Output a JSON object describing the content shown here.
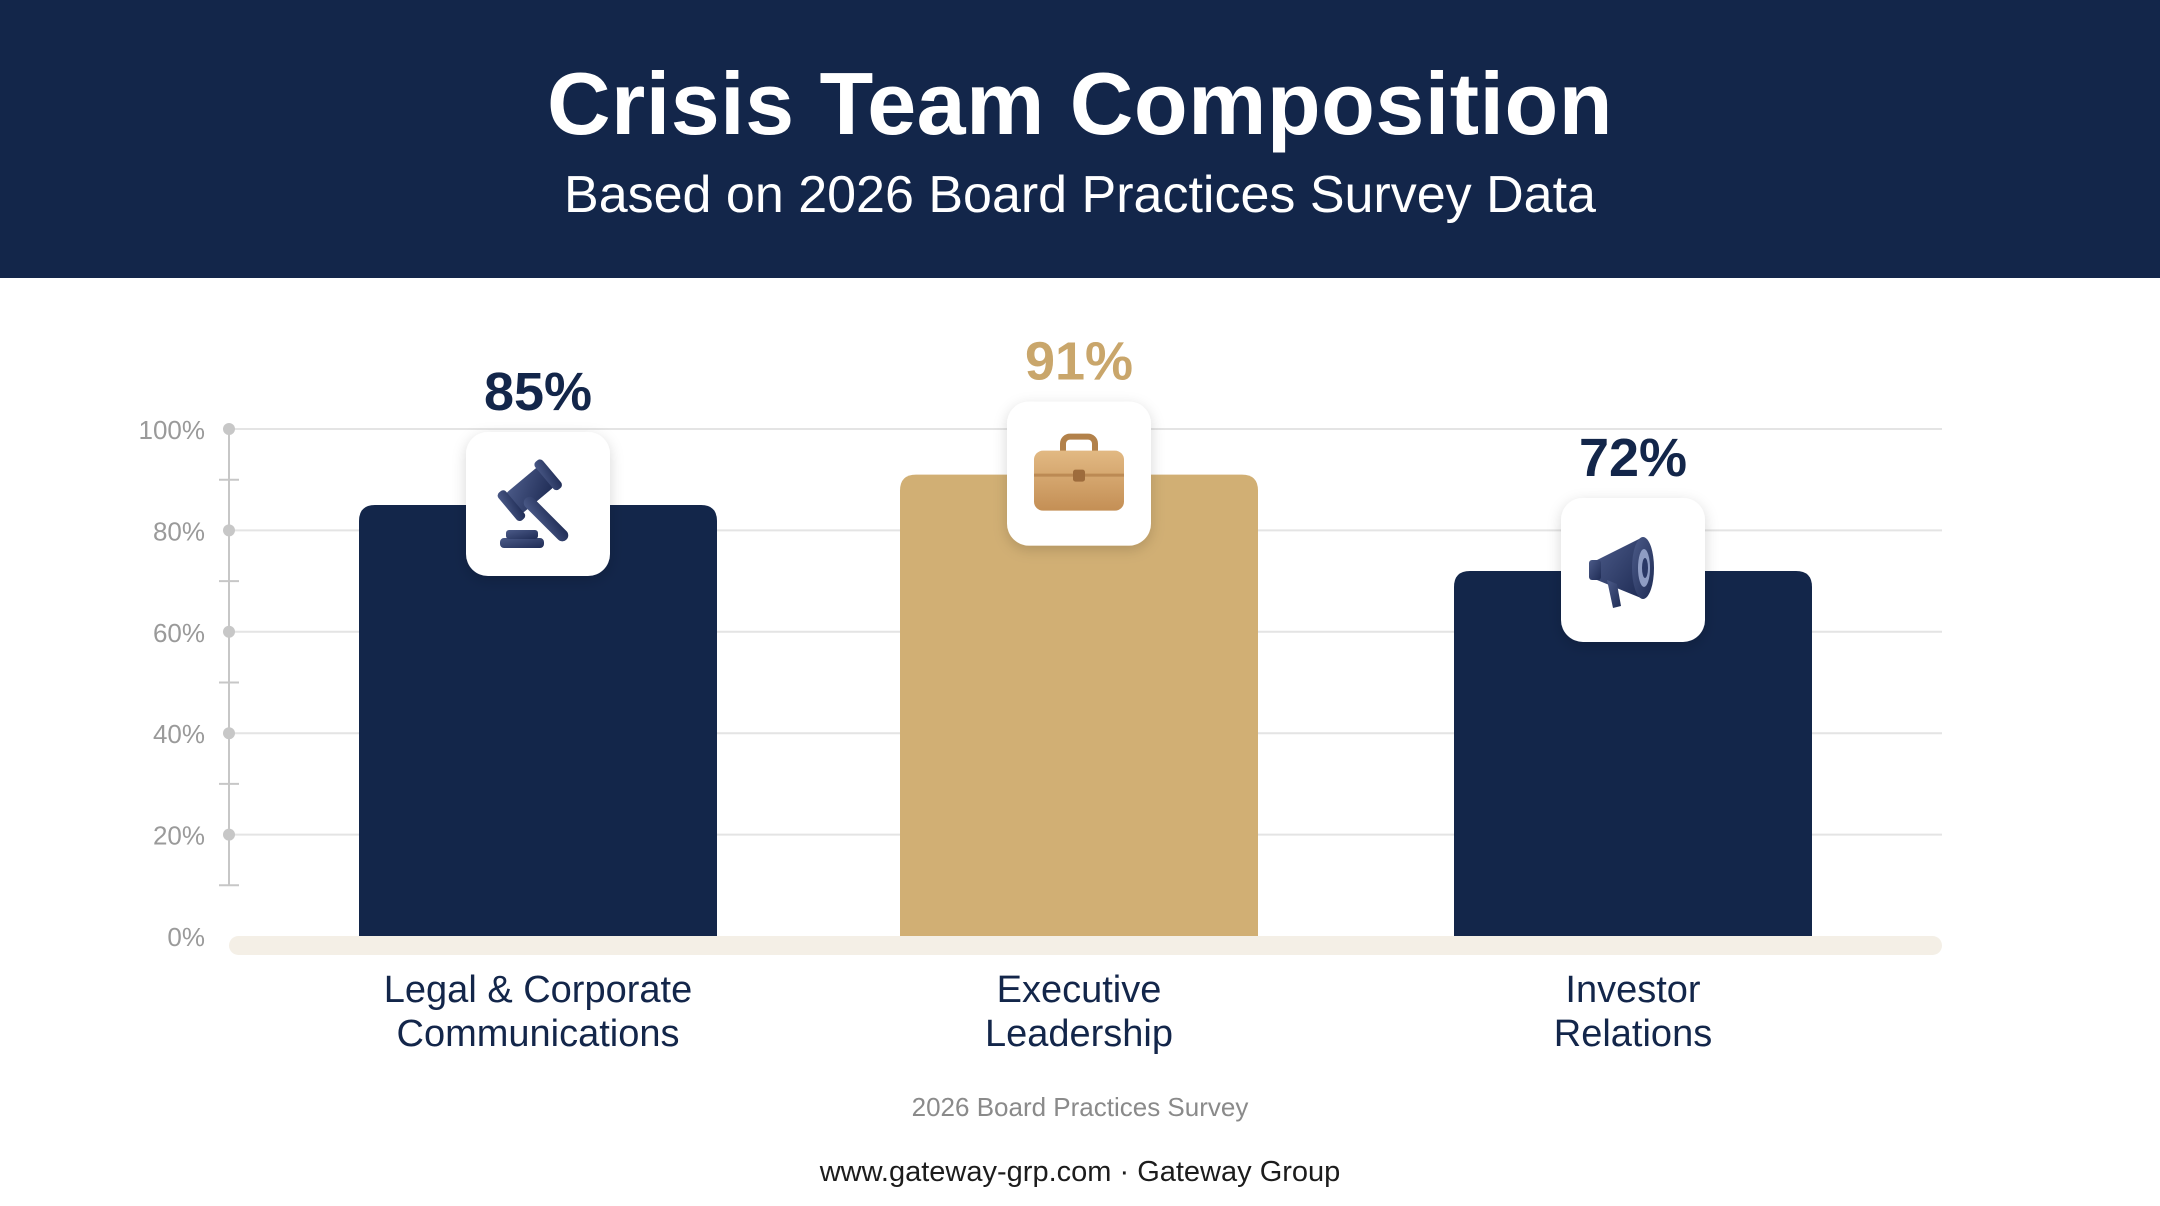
{
  "header": {
    "title": "Crisis Team Composition",
    "subtitle": "Based on 2026 Board Practices Survey Data"
  },
  "chart_data": {
    "type": "bar",
    "title": "Crisis Team Composition",
    "subtitle": "Based on 2026 Board Practices Survey Data",
    "categories": [
      {
        "line1": "Legal & Corporate",
        "line2": "Communications"
      },
      {
        "line1": "Executive",
        "line2": "Leadership"
      },
      {
        "line1": "Investor",
        "line2": "Relations"
      }
    ],
    "values": [
      85,
      91,
      72
    ],
    "value_labels": [
      "85%",
      "91%",
      "72%"
    ],
    "bar_colors": [
      "#13264a",
      "#d1af74",
      "#13264a"
    ],
    "value_label_colors": [
      "#13264a",
      "#c9a66b",
      "#13264a"
    ],
    "icons": [
      "gavel-icon",
      "briefcase-icon",
      "megaphone-icon"
    ],
    "ylim": [
      0,
      100
    ],
    "y_ticks": [
      0,
      20,
      40,
      60,
      80,
      100
    ],
    "y_tick_labels": [
      "0%",
      "20%",
      "40%",
      "60%",
      "80%",
      "100%"
    ],
    "grid": true,
    "legend": "none"
  },
  "source_note": "2026 Board Practices Survey",
  "footer": "www.gateway-grp.com · Gateway Group",
  "colors": {
    "navy": "#13264a",
    "gold": "#d1af74",
    "baseline": "#f4efe6",
    "grid": "#e4e4e4",
    "axis_text": "#9a9a9a"
  }
}
